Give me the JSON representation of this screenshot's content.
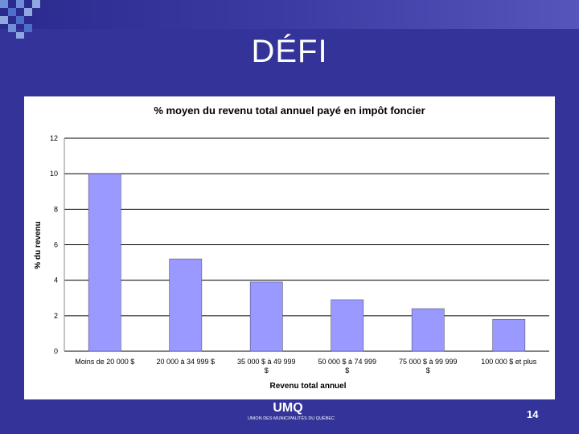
{
  "slide": {
    "title": "DÉFI",
    "page_number": "14",
    "logo_text": "UMQ",
    "logo_subtext": "UNION DES MUNICIPALITÉS DU QUÉBEC"
  },
  "colors": {
    "background": "#333399",
    "bar": "#9999ff",
    "bar_stroke": "#555577"
  },
  "chart_data": {
    "type": "bar",
    "title": "% moyen du revenu total annuel payé en impôt foncier",
    "xlabel": "Revenu total annuel",
    "ylabel": "% du revenu",
    "ylim": [
      0,
      12
    ],
    "yticks": [
      0,
      2,
      4,
      6,
      8,
      10,
      12
    ],
    "grid": true,
    "categories": [
      [
        "Moins de 20 000 $"
      ],
      [
        "20 000 à 34 999 $"
      ],
      [
        "35 000 $ à 49 999",
        "$"
      ],
      [
        "50 000 $ à 74 999",
        "$"
      ],
      [
        "75 000 $ à 99 999",
        "$"
      ],
      [
        "100 000 $ et plus"
      ]
    ],
    "values": [
      10.0,
      5.2,
      3.9,
      2.9,
      2.4,
      1.8
    ]
  }
}
